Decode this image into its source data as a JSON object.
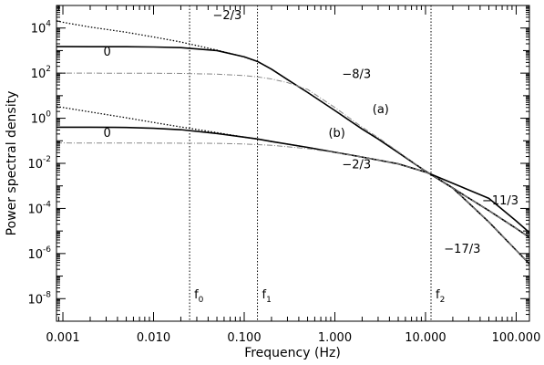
{
  "chart_data": {
    "type": "line",
    "xlabel": "Frequency (Hz)",
    "ylabel": "Power spectral density",
    "x_scale": "log",
    "y_scale": "log",
    "xlim": [
      0.00085,
      140
    ],
    "ylim": [
      1e-09,
      100000.0
    ],
    "x_ticks": [
      {
        "value": 0.001,
        "label": "0.001"
      },
      {
        "value": 0.01,
        "label": "0.010"
      },
      {
        "value": 0.1,
        "label": "0.100"
      },
      {
        "value": 1,
        "label": "1.000"
      },
      {
        "value": 10,
        "label": "10.000"
      },
      {
        "value": 100,
        "label": "100.000"
      }
    ],
    "y_ticks": [
      {
        "value": 10000.0,
        "base": "10",
        "exp": "4"
      },
      {
        "value": 100.0,
        "base": "10",
        "exp": "2"
      },
      {
        "value": 1,
        "base": "10",
        "exp": "0"
      },
      {
        "value": 0.01,
        "base": "10",
        "exp": "-2"
      },
      {
        "value": 0.0001,
        "base": "10",
        "exp": "-4"
      },
      {
        "value": 1e-06,
        "base": "10",
        "exp": "-6"
      },
      {
        "value": 1e-08,
        "base": "10",
        "exp": "-8"
      }
    ],
    "vlines": [
      {
        "value": 0.025,
        "label": "f",
        "sub": "0"
      },
      {
        "value": 0.14,
        "label": "f",
        "sub": "1"
      },
      {
        "value": 11.5,
        "label": "f",
        "sub": "2"
      }
    ],
    "series": [
      {
        "style": "dotted",
        "x": [
          0.00085,
          0.001,
          0.002,
          0.005,
          0.01,
          0.02,
          0.05,
          0.1,
          0.14,
          0.2,
          0.3,
          0.5,
          1,
          2,
          3,
          5,
          10,
          20,
          50,
          100,
          140
        ],
        "y": [
          21000,
          18000,
          11000,
          6500,
          4000,
          2400,
          1050,
          520,
          330,
          150,
          52,
          14,
          2.2,
          0.33,
          0.12,
          0.03,
          0.0045,
          0.0008,
          8e-05,
          1.3e-05,
          5.2e-06
        ]
      },
      {
        "style": "solid",
        "x": [
          0.00085,
          0.001,
          0.002,
          0.005,
          0.01,
          0.02,
          0.05,
          0.1,
          0.14,
          0.2,
          0.3,
          0.5,
          1,
          2,
          3,
          5,
          10,
          20,
          50,
          100,
          140
        ],
        "y": [
          1500,
          1500,
          1490,
          1480,
          1440,
          1350,
          1000,
          530,
          330,
          150,
          52,
          14,
          2.2,
          0.33,
          0.12,
          0.03,
          0.0045,
          0.0008,
          8e-05,
          1.3e-05,
          5.2e-06
        ]
      },
      {
        "style": "dash-dot",
        "x": [
          0.00085,
          0.001,
          0.01,
          0.02,
          0.05,
          0.1,
          0.14,
          0.2,
          0.3,
          0.5,
          1,
          2,
          3,
          5,
          10,
          20,
          50,
          100,
          140
        ],
        "y": [
          100,
          100,
          99,
          97,
          90,
          78,
          68,
          55,
          38,
          19,
          3,
          0.4,
          0.14,
          0.033,
          0.0045,
          0.0008,
          8e-05,
          1.3e-05,
          5.2e-06
        ]
      },
      {
        "style": "dotted",
        "x": [
          0.00085,
          0.001,
          0.002,
          0.005,
          0.01,
          0.02,
          0.05,
          0.1,
          0.14,
          0.2,
          0.5,
          1,
          2,
          5,
          10,
          11.5,
          20,
          50,
          100,
          140
        ],
        "y": [
          3.3,
          3.0,
          1.9,
          1.05,
          0.65,
          0.41,
          0.23,
          0.145,
          0.12,
          0.093,
          0.051,
          0.031,
          0.019,
          0.0095,
          0.0041,
          0.0033,
          0.0008,
          2.5e-05,
          1.4e-06,
          3.5e-07
        ]
      },
      {
        "style": "solid",
        "x": [
          0.00085,
          0.001,
          0.002,
          0.005,
          0.01,
          0.02,
          0.05,
          0.1,
          0.14,
          0.2,
          0.5,
          1,
          2,
          5,
          10,
          11.5,
          20,
          50,
          100,
          140
        ],
        "y": [
          0.4,
          0.4,
          0.4,
          0.39,
          0.36,
          0.31,
          0.21,
          0.145,
          0.12,
          0.093,
          0.051,
          0.031,
          0.019,
          0.0095,
          0.0041,
          0.0033,
          0.0008,
          2.5e-05,
          1.4e-06,
          3.5e-07
        ]
      },
      {
        "style": "dash-dot",
        "x": [
          0.00085,
          0.001,
          0.01,
          0.05,
          0.1,
          0.2,
          0.5,
          1,
          2,
          5,
          10,
          11.5,
          20,
          50,
          100,
          140
        ],
        "y": [
          0.08,
          0.08,
          0.079,
          0.077,
          0.072,
          0.063,
          0.045,
          0.03,
          0.019,
          0.0095,
          0.0041,
          0.0033,
          0.0008,
          2.5e-05,
          1.4e-06,
          3.5e-07
        ]
      },
      {
        "style": "solid",
        "x": [
          11.5,
          20,
          50,
          100,
          140
        ],
        "y": [
          0.0033,
          0.0013,
          0.00028,
          2.8e-05,
          8.5e-06
        ]
      }
    ],
    "annotations": [
      {
        "text": "0",
        "x": 0.0028,
        "y": 600
      },
      {
        "text": "−2/3",
        "x": 0.045,
        "y": 25000
      },
      {
        "text": "−8/3",
        "x": 1.2,
        "y": 60
      },
      {
        "text": "(a)",
        "x": 2.6,
        "y": 1.7
      },
      {
        "text": "0",
        "x": 0.0028,
        "y": 0.15
      },
      {
        "text": "(b)",
        "x": 0.85,
        "y": 0.15
      },
      {
        "text": "−2/3",
        "x": 1.2,
        "y": 0.006
      },
      {
        "text": "−11/3",
        "x": 42,
        "y": 0.00015
      },
      {
        "text": "−17/3",
        "x": 16,
        "y": 1.1e-06
      }
    ]
  }
}
